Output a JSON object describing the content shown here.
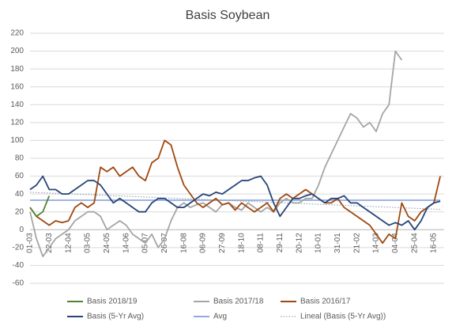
{
  "chart_data": {
    "type": "line",
    "title": "Basis Soybean",
    "categories": [
      "01-03",
      null,
      null,
      "22-03",
      null,
      null,
      "12-04",
      null,
      null,
      "03-05",
      null,
      null,
      "24-05",
      null,
      null,
      "14-06",
      null,
      null,
      "05-07",
      null,
      null,
      "26-07",
      null,
      null,
      "16-08",
      null,
      null,
      "06-09",
      null,
      null,
      "27-09",
      null,
      null,
      "18-10",
      null,
      null,
      "08-11",
      null,
      null,
      "29-11",
      null,
      null,
      "20-12",
      null,
      null,
      "10-01",
      null,
      null,
      "31-01",
      null,
      null,
      "21-02",
      null,
      null,
      "14-03",
      null,
      null,
      "04-04",
      null,
      null,
      "25-04",
      null,
      null,
      "16-05",
      null
    ],
    "ylim": [
      -60,
      220
    ],
    "yticks": [
      -60,
      -40,
      -20,
      0,
      20,
      40,
      60,
      80,
      100,
      120,
      140,
      160,
      180,
      200,
      220
    ],
    "grid": true,
    "legend": "bottom",
    "series": [
      {
        "name": "Basis 2018/19",
        "color": "#548235",
        "values": [
          25,
          15,
          20,
          38,
          null,
          null,
          null,
          null,
          null,
          null,
          null,
          null,
          null,
          null,
          null,
          null,
          null,
          null,
          null,
          null,
          null,
          null,
          null,
          null,
          null,
          null,
          null,
          null,
          null,
          null,
          null,
          null,
          null,
          null,
          null,
          null,
          null,
          null,
          null,
          null,
          null,
          null,
          null,
          null,
          null,
          null,
          null,
          null,
          null,
          null,
          null,
          null,
          null,
          null,
          null,
          null,
          null,
          null,
          null,
          null,
          null,
          null,
          null,
          null,
          null
        ]
      },
      {
        "name": "Basis 2017/18",
        "color": "#a5a5a5",
        "values": [
          20,
          -10,
          -30,
          -20,
          -10,
          -5,
          0,
          10,
          15,
          20,
          20,
          15,
          0,
          5,
          10,
          5,
          -5,
          -10,
          -15,
          -5,
          -20,
          -10,
          10,
          25,
          30,
          25,
          28,
          30,
          25,
          20,
          28,
          30,
          25,
          22,
          30,
          25,
          20,
          25,
          20,
          30,
          35,
          30,
          30,
          35,
          35,
          50,
          70,
          85,
          100,
          115,
          130,
          125,
          115,
          120,
          110,
          130,
          140,
          200,
          190,
          null,
          null,
          null,
          null,
          null,
          null
        ]
      },
      {
        "name": "Basis 2016/17",
        "color": "#9e480e",
        "values": [
          25,
          15,
          10,
          5,
          10,
          8,
          10,
          25,
          30,
          25,
          30,
          70,
          65,
          70,
          60,
          65,
          70,
          60,
          55,
          75,
          80,
          100,
          95,
          70,
          50,
          40,
          30,
          25,
          30,
          35,
          28,
          30,
          22,
          30,
          25,
          20,
          25,
          30,
          20,
          35,
          40,
          35,
          40,
          45,
          40,
          35,
          30,
          30,
          35,
          25,
          20,
          15,
          10,
          5,
          -5,
          -15,
          -5,
          -10,
          30,
          15,
          10,
          20,
          25,
          30,
          60
        ]
      },
      {
        "name": "Basis (5-Yr Avg)",
        "color": "#264478",
        "values": [
          45,
          50,
          60,
          45,
          45,
          40,
          40,
          45,
          50,
          55,
          55,
          50,
          40,
          30,
          35,
          30,
          25,
          20,
          20,
          30,
          35,
          35,
          30,
          25,
          25,
          30,
          35,
          40,
          38,
          42,
          40,
          45,
          50,
          55,
          55,
          58,
          60,
          50,
          30,
          15,
          25,
          35,
          35,
          38,
          40,
          35,
          30,
          35,
          35,
          38,
          30,
          30,
          25,
          20,
          15,
          10,
          5,
          8,
          5,
          10,
          0,
          10,
          25,
          30,
          32
        ]
      },
      {
        "name": "Avg",
        "color": "#8faadc",
        "values": [
          33,
          33,
          33,
          33,
          33,
          33,
          33,
          33,
          33,
          33,
          33,
          33,
          33,
          33,
          33,
          33,
          33,
          33,
          33,
          33,
          33,
          33,
          33,
          33,
          33,
          33,
          33,
          33,
          33,
          33,
          33,
          33,
          33,
          33,
          33,
          33,
          33,
          33,
          33,
          33,
          33,
          33,
          33,
          33,
          33,
          33,
          33,
          33,
          33,
          33,
          33,
          33,
          33,
          33,
          33,
          33,
          33,
          33,
          33,
          33,
          33,
          33,
          33,
          33,
          33
        ]
      },
      {
        "name": "Lineal (Basis (5-Yr Avg))",
        "color": "#8497b0",
        "line_style": "dotted",
        "values": [
          42,
          41.7,
          41.4,
          41.1,
          40.8,
          40.5,
          40.2,
          39.9,
          39.6,
          39.3,
          39,
          38.7,
          38.4,
          38.1,
          37.8,
          37.5,
          37.2,
          36.9,
          36.6,
          36.3,
          36,
          35.7,
          35.4,
          35.1,
          34.8,
          34.5,
          34.2,
          33.9,
          33.6,
          33.3,
          33,
          32.7,
          32.4,
          32.1,
          31.8,
          31.5,
          31.2,
          30.9,
          30.6,
          30.3,
          30,
          29.7,
          29.4,
          29.1,
          28.8,
          28.5,
          28.2,
          27.9,
          27.6,
          27.3,
          27,
          26.7,
          26.4,
          26.1,
          25.8,
          25.5,
          25.2,
          24.9,
          24.6,
          24.3,
          24,
          23.7,
          23.4,
          23.1,
          22.8
        ]
      }
    ]
  }
}
